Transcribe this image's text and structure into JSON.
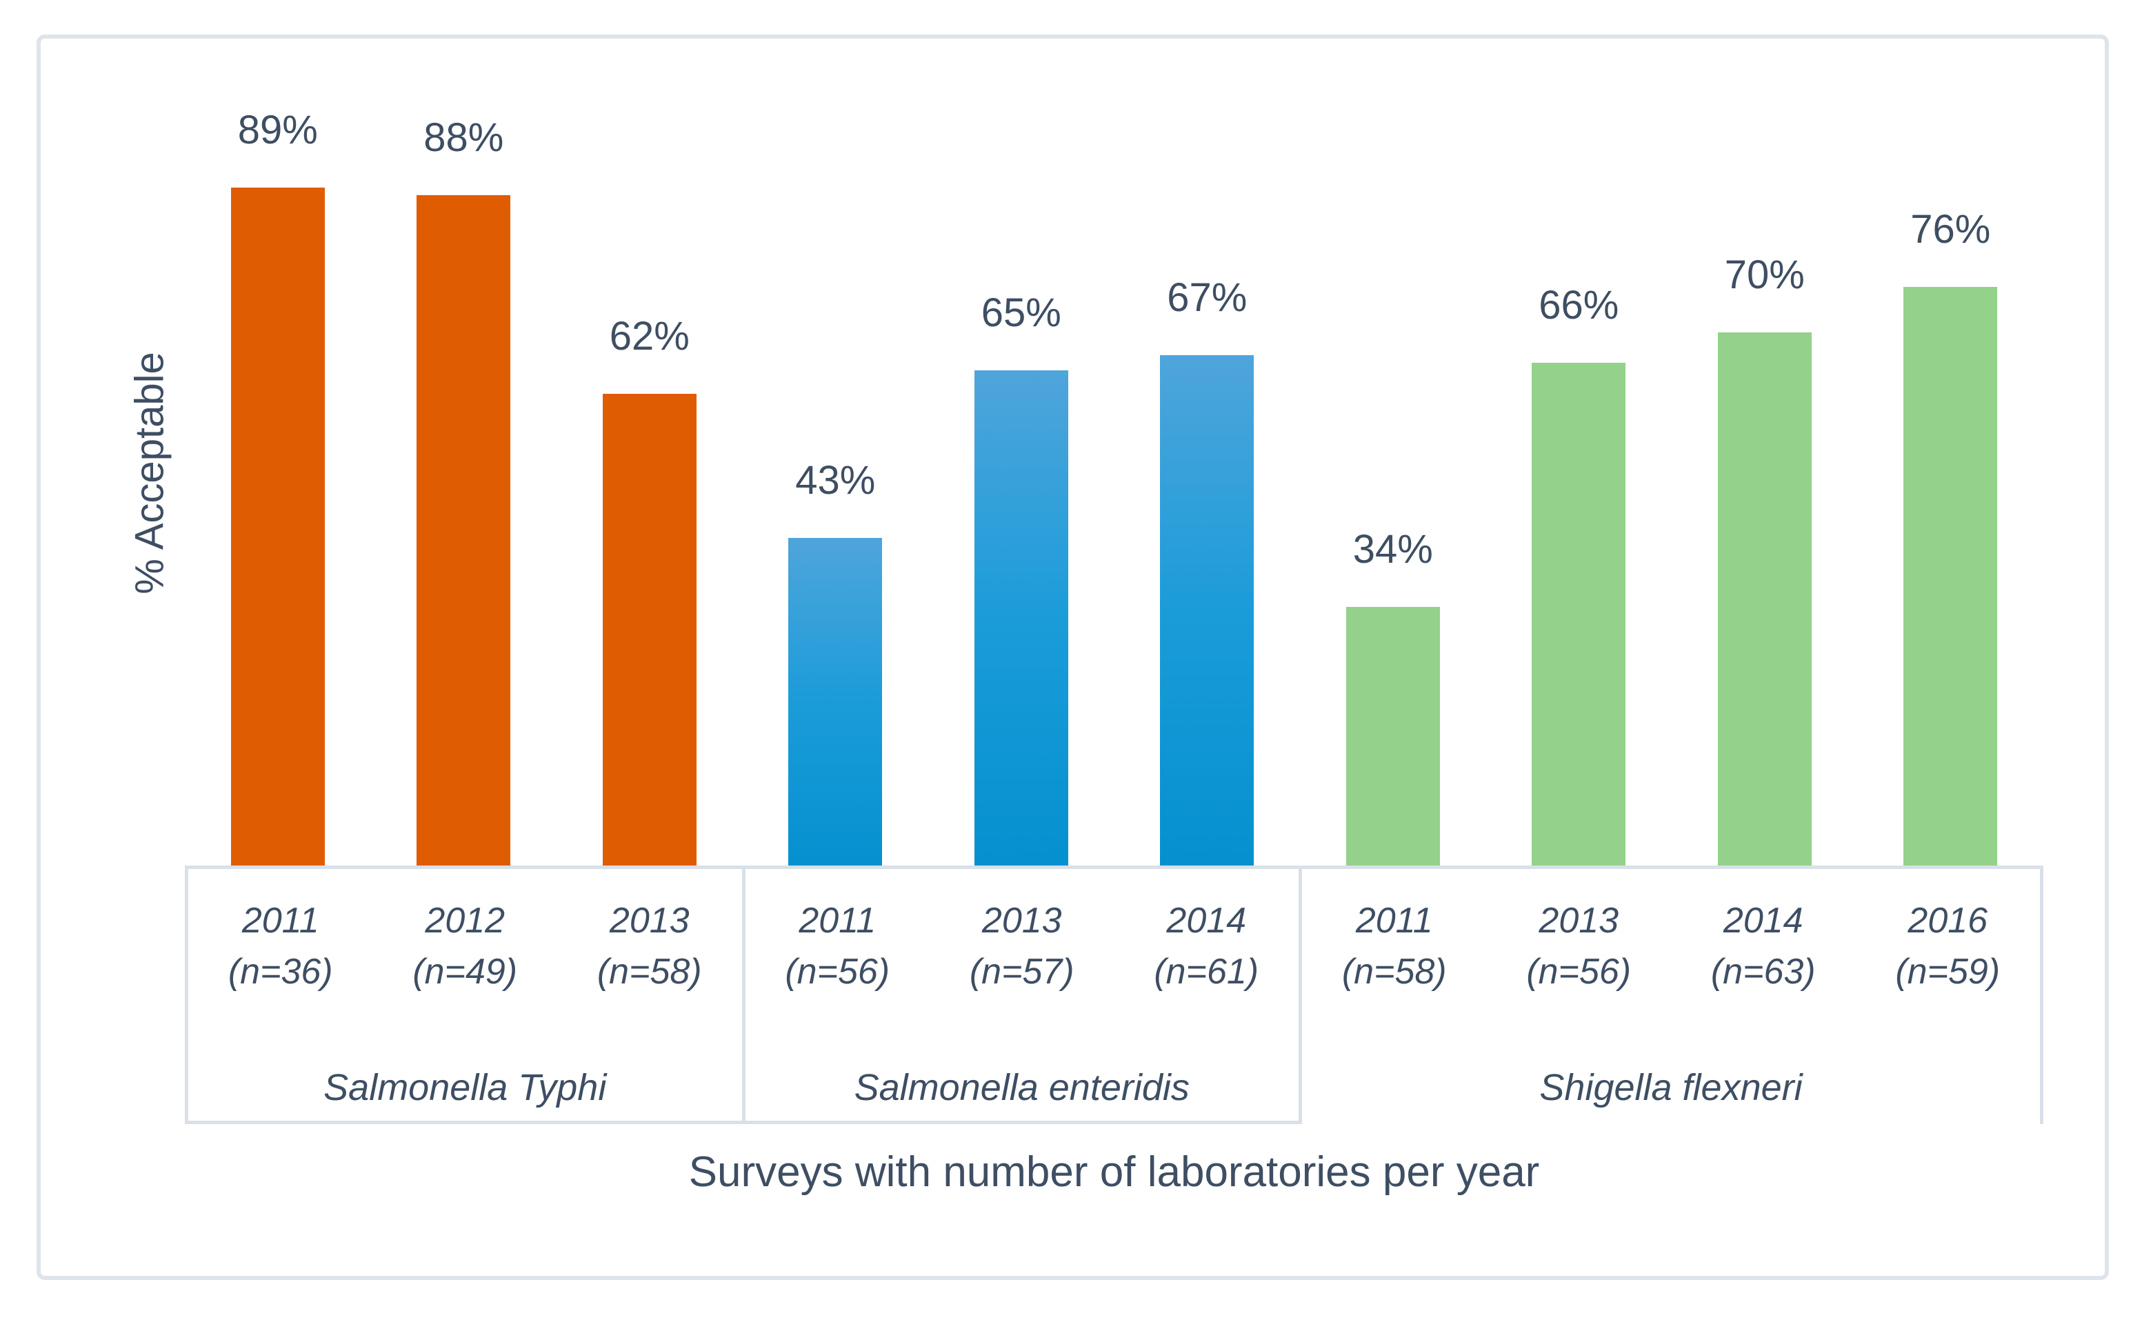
{
  "figure": {
    "background": "#FFFFFF",
    "border_color": "#DEE4EB",
    "text_color": "#3E4E63",
    "axis_line_color": "#D9E0E8"
  },
  "chart_data": {
    "type": "bar",
    "title": "",
    "ylabel": "% Acceptable",
    "xlabel": "Surveys with number of laboratories per year",
    "ylim": [
      0,
      100
    ],
    "y_unit": "percent",
    "gridlines": false,
    "legend": "none",
    "value_labels_shown": true,
    "groups": [
      {
        "name": "Salmonella Typhi",
        "fill": {
          "type": "solid",
          "color": "#E05C00"
        },
        "bars": [
          {
            "year": "2011",
            "n_label": "(n=36)",
            "value": 89,
            "value_label": "89%"
          },
          {
            "year": "2012",
            "n_label": "(n=49)",
            "value": 88,
            "value_label": "88%"
          },
          {
            "year": "2013",
            "n_label": "(n=58)",
            "value": 62,
            "value_label": "62%"
          }
        ]
      },
      {
        "name": "Salmonella enteridis",
        "fill": {
          "type": "gradient",
          "stops": [
            "#4FA5DB",
            "#1B9CD9",
            "#0590CF"
          ]
        },
        "bars": [
          {
            "year": "2011",
            "n_label": "(n=56)",
            "value": 43,
            "value_label": "43%"
          },
          {
            "year": "2013",
            "n_label": "(n=57)",
            "value": 65,
            "value_label": "65%"
          },
          {
            "year": "2014",
            "n_label": "(n=61)",
            "value": 67,
            "value_label": "67%"
          }
        ]
      },
      {
        "name": "Shigella flexneri",
        "fill": {
          "type": "solid",
          "color": "#94D18A"
        },
        "bars": [
          {
            "year": "2011",
            "n_label": "(n=58)",
            "value": 34,
            "value_label": "34%"
          },
          {
            "year": "2013",
            "n_label": "(n=56)",
            "value": 66,
            "value_label": "66%"
          },
          {
            "year": "2014",
            "n_label": "(n=63)",
            "value": 70,
            "value_label": "70%"
          },
          {
            "year": "2016",
            "n_label": "(n=59)",
            "value": 76,
            "value_label": "76%"
          }
        ]
      }
    ]
  }
}
